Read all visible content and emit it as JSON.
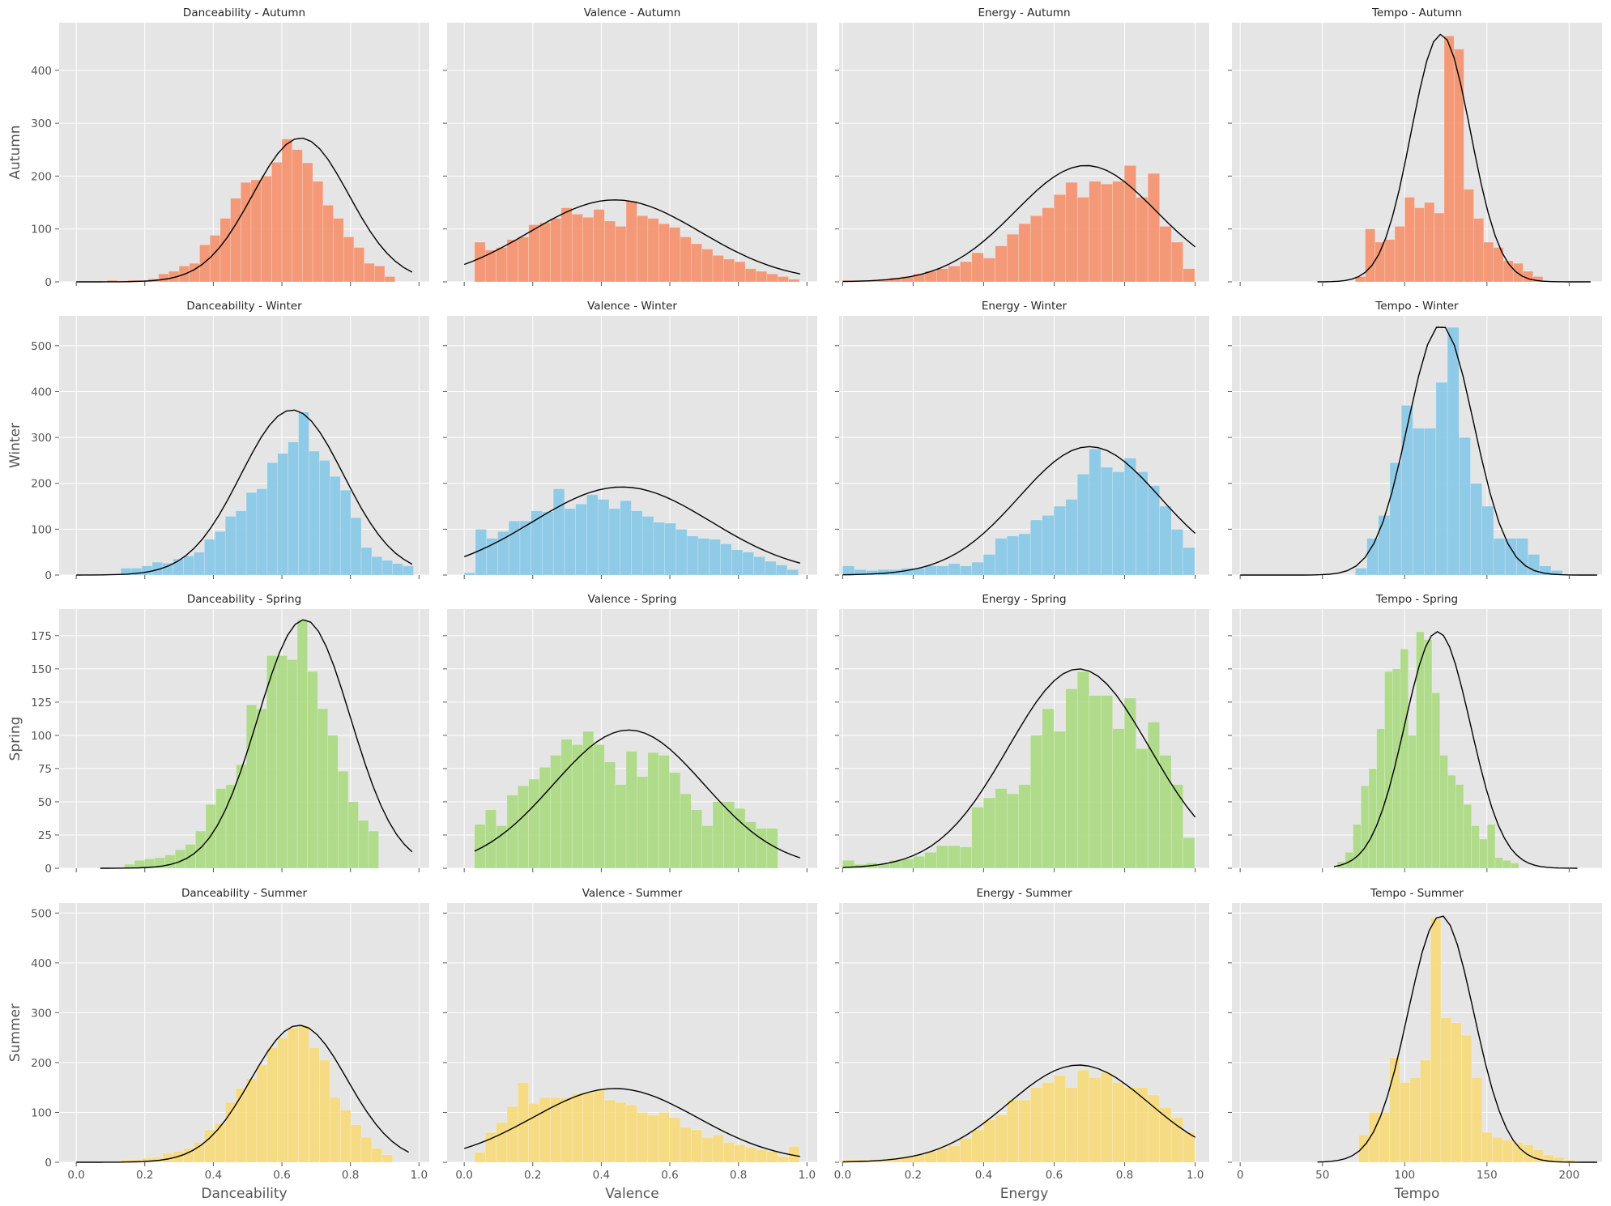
{
  "figure": {
    "colors": {
      "Autumn": "#f4906a",
      "Winter": "#85c6e6",
      "Spring": "#a9d97f",
      "Summer": "#f7d97a",
      "panel_bg": "#e5e5e5",
      "grid": "#ffffff",
      "curve": "#000000"
    }
  },
  "chart_data": {
    "type": "histogram-grid",
    "grid": true,
    "rows": [
      "Autumn",
      "Winter",
      "Spring",
      "Summer"
    ],
    "columns": [
      "Danceability",
      "Valence",
      "Energy",
      "Tempo"
    ],
    "xlabels": [
      "Danceability",
      "Valence",
      "Energy",
      "Tempo"
    ],
    "ylabels": [
      "Autumn",
      "Winter",
      "Spring",
      "Summer"
    ],
    "col_xlim": [
      [
        -0.05,
        1.03
      ],
      [
        -0.05,
        1.03
      ],
      [
        -0.01,
        1.04
      ],
      [
        -5,
        220
      ]
    ],
    "col_xticks": [
      [
        0.0,
        0.2,
        0.4,
        0.6,
        0.8,
        1.0
      ],
      [
        0.0,
        0.2,
        0.4,
        0.6,
        0.8,
        1.0
      ],
      [
        0.0,
        0.2,
        0.4,
        0.6,
        0.8,
        1.0
      ],
      [
        0,
        50,
        100,
        150,
        200
      ]
    ],
    "col_xtick_labels": [
      [
        "0.0",
        "0.2",
        "0.4",
        "0.6",
        "0.8",
        "1.0"
      ],
      [
        "0.0",
        "0.2",
        "0.4",
        "0.6",
        "0.8",
        "1.0"
      ],
      [
        "0.0",
        "0.2",
        "0.4",
        "0.6",
        "0.8",
        "1.0"
      ],
      [
        "0",
        "50",
        "100",
        "150",
        "200"
      ]
    ],
    "row_ylim": [
      [
        0,
        490
      ],
      [
        0,
        565
      ],
      [
        0,
        195
      ],
      [
        0,
        520
      ]
    ],
    "row_yticks": [
      [
        0,
        100,
        200,
        300,
        400
      ],
      [
        0,
        100,
        200,
        300,
        400,
        500
      ],
      [
        0,
        25,
        50,
        75,
        100,
        125,
        150,
        175
      ],
      [
        0,
        100,
        200,
        300,
        400,
        500
      ]
    ],
    "row_ytick_labels": [
      [
        "0",
        "100",
        "200",
        "300",
        "400"
      ],
      [
        "0",
        "100",
        "200",
        "300",
        "400",
        "500"
      ],
      [
        "0",
        "25",
        "50",
        "75",
        "100",
        "125",
        "150",
        "175"
      ],
      [
        "0",
        "100",
        "200",
        "300",
        "400",
        "500"
      ]
    ],
    "panels": [
      {
        "title": "Danceability - Autumn",
        "row": 0,
        "col": 0,
        "bin_start": 0.09,
        "bin_width": 0.03,
        "counts": [
          3,
          2,
          3,
          3,
          6,
          15,
          20,
          30,
          35,
          70,
          88,
          120,
          158,
          188,
          193,
          200,
          226,
          270,
          250,
          225,
          190,
          145,
          120,
          85,
          65,
          35,
          30,
          10
        ],
        "curve": {
          "mean": 0.655,
          "std": 0.14,
          "peak": 272,
          "x_range": [
            0.0,
            0.98
          ]
        }
      },
      {
        "title": "Valence - Autumn",
        "row": 0,
        "col": 1,
        "bin_start": 0.03,
        "bin_width": 0.0316,
        "counts": [
          75,
          60,
          65,
          80,
          85,
          108,
          112,
          120,
          140,
          128,
          122,
          137,
          115,
          105,
          153,
          125,
          120,
          110,
          103,
          85,
          72,
          62,
          50,
          43,
          38,
          25,
          20,
          15,
          10,
          5
        ],
        "curve": {
          "mean": 0.44,
          "std": 0.25,
          "peak": 155,
          "x_range": [
            0.0,
            0.98
          ]
        }
      },
      {
        "title": "Energy - Autumn",
        "row": 0,
        "col": 2,
        "bin_start": 0.0,
        "bin_width": 0.0333,
        "counts": [
          3,
          3,
          3,
          5,
          8,
          10,
          15,
          20,
          25,
          30,
          38,
          55,
          45,
          68,
          90,
          110,
          125,
          140,
          165,
          188,
          160,
          190,
          185,
          190,
          220,
          160,
          205,
          105,
          75,
          25
        ],
        "curve": {
          "mean": 0.69,
          "std": 0.2,
          "peak": 220,
          "x_range": [
            0.0,
            1.0
          ]
        }
      },
      {
        "title": "Tempo - Autumn",
        "row": 0,
        "col": 3,
        "bin_start": 70,
        "bin_width": 6,
        "counts": [
          10,
          100,
          75,
          80,
          105,
          160,
          140,
          150,
          130,
          465,
          440,
          175,
          120,
          75,
          65,
          40,
          35,
          20,
          10
        ],
        "curve": {
          "mean": 122,
          "std": 18,
          "peak": 468,
          "x_range": [
            47,
            213
          ]
        }
      },
      {
        "title": "Danceability - Winter",
        "row": 1,
        "col": 0,
        "bin_start": 0.13,
        "bin_width": 0.0305,
        "counts": [
          15,
          15,
          20,
          28,
          26,
          35,
          42,
          50,
          78,
          95,
          128,
          140,
          180,
          188,
          245,
          265,
          290,
          355,
          270,
          250,
          215,
          185,
          125,
          60,
          40,
          32,
          25,
          20
        ],
        "curve": {
          "mean": 0.63,
          "std": 0.15,
          "peak": 360,
          "x_range": [
            0.0,
            0.98
          ]
        }
      },
      {
        "title": "Valence - Winter",
        "row": 1,
        "col": 1,
        "bin_start": 0.0,
        "bin_width": 0.0325,
        "counts": [
          5,
          100,
          80,
          95,
          118,
          118,
          140,
          138,
          188,
          145,
          155,
          175,
          165,
          145,
          162,
          140,
          128,
          115,
          113,
          100,
          85,
          80,
          78,
          68,
          55,
          50,
          40,
          30,
          22,
          12
        ],
        "curve": {
          "mean": 0.46,
          "std": 0.26,
          "peak": 192,
          "x_range": [
            0.0,
            0.98
          ]
        }
      },
      {
        "title": "Energy - Winter",
        "row": 1,
        "col": 2,
        "bin_start": 0.0,
        "bin_width": 0.0333,
        "counts": [
          20,
          12,
          10,
          12,
          12,
          15,
          15,
          20,
          20,
          25,
          20,
          28,
          45,
          80,
          85,
          90,
          120,
          130,
          150,
          165,
          220,
          275,
          235,
          225,
          255,
          225,
          195,
          150,
          100,
          60
        ],
        "curve": {
          "mean": 0.7,
          "std": 0.2,
          "peak": 280,
          "x_range": [
            0.0,
            1.0
          ]
        }
      },
      {
        "title": "Tempo - Winter",
        "row": 1,
        "col": 3,
        "bin_start": 70,
        "bin_width": 7,
        "counts": [
          15,
          80,
          130,
          245,
          370,
          320,
          320,
          420,
          540,
          300,
          200,
          150,
          80,
          80,
          80,
          45,
          20,
          10
        ],
        "curve": {
          "mean": 122,
          "std": 20,
          "peak": 545,
          "x_range": [
            0,
            217
          ]
        }
      },
      {
        "title": "Danceability - Spring",
        "row": 2,
        "col": 0,
        "bin_start": 0.14,
        "bin_width": 0.0297,
        "counts": [
          3,
          6,
          7,
          8,
          10,
          14,
          18,
          28,
          48,
          60,
          63,
          78,
          123,
          120,
          160,
          160,
          157,
          187,
          148,
          120,
          100,
          73,
          50,
          36,
          28
        ],
        "curve": {
          "mean": 0.665,
          "std": 0.135,
          "peak": 187,
          "x_range": [
            0.07,
            0.98
          ]
        }
      },
      {
        "title": "Valence - Spring",
        "row": 2,
        "col": 1,
        "bin_start": 0.03,
        "bin_width": 0.0316,
        "counts": [
          33,
          44,
          32,
          55,
          62,
          67,
          76,
          85,
          97,
          93,
          103,
          93,
          80,
          63,
          88,
          69,
          87,
          85,
          72,
          56,
          44,
          32,
          50,
          50,
          45,
          35,
          30,
          30
        ],
        "curve": {
          "mean": 0.48,
          "std": 0.22,
          "peak": 104,
          "x_range": [
            0.03,
            0.98
          ]
        }
      },
      {
        "title": "Energy - Spring",
        "row": 2,
        "col": 2,
        "bin_start": 0.0,
        "bin_width": 0.0333,
        "counts": [
          6,
          3,
          4,
          3,
          6,
          7,
          9,
          12,
          17,
          17,
          16,
          46,
          53,
          60,
          56,
          63,
          100,
          120,
          103,
          135,
          148,
          130,
          130,
          105,
          128,
          90,
          110,
          85,
          63,
          23
        ],
        "curve": {
          "mean": 0.67,
          "std": 0.2,
          "peak": 150,
          "x_range": [
            0.0,
            1.0
          ]
        }
      },
      {
        "title": "Tempo - Spring",
        "row": 2,
        "col": 3,
        "bin_start": 59,
        "bin_width": 4.8,
        "counts": [
          5,
          12,
          33,
          62,
          75,
          105,
          148,
          150,
          165,
          100,
          178,
          172,
          132,
          85,
          70,
          63,
          48,
          32,
          22,
          33,
          8,
          6,
          4
        ],
        "curve": {
          "mean": 120,
          "std": 20,
          "peak": 178,
          "x_range": [
            57,
            205
          ]
        }
      },
      {
        "title": "Danceability - Summer",
        "row": 3,
        "col": 0,
        "bin_start": 0.13,
        "bin_width": 0.0305,
        "counts": [
          5,
          5,
          8,
          10,
          18,
          22,
          28,
          40,
          65,
          78,
          120,
          148,
          168,
          195,
          230,
          250,
          270,
          275,
          230,
          205,
          130,
          105,
          75,
          50,
          28,
          15
        ],
        "curve": {
          "mean": 0.65,
          "std": 0.14,
          "peak": 275,
          "x_range": [
            0.0,
            0.97
          ]
        }
      },
      {
        "title": "Valence - Summer",
        "row": 3,
        "col": 1,
        "bin_start": 0.03,
        "bin_width": 0.0316,
        "counts": [
          20,
          60,
          80,
          112,
          160,
          118,
          130,
          130,
          130,
          138,
          140,
          145,
          125,
          120,
          115,
          100,
          95,
          100,
          90,
          70,
          65,
          50,
          55,
          40,
          35,
          30,
          25,
          22,
          12,
          32
        ],
        "curve": {
          "mean": 0.44,
          "std": 0.24,
          "peak": 148,
          "x_range": [
            0.0,
            0.98
          ]
        }
      },
      {
        "title": "Energy - Summer",
        "row": 3,
        "col": 2,
        "bin_start": 0.0,
        "bin_width": 0.0333,
        "counts": [
          5,
          5,
          5,
          5,
          8,
          12,
          15,
          22,
          28,
          33,
          48,
          65,
          85,
          95,
          125,
          125,
          150,
          160,
          175,
          150,
          185,
          170,
          180,
          160,
          150,
          150,
          135,
          110,
          90,
          60
        ],
        "curve": {
          "mean": 0.67,
          "std": 0.2,
          "peak": 195,
          "x_range": [
            0.0,
            1.0
          ]
        }
      },
      {
        "title": "Tempo - Summer",
        "row": 3,
        "col": 3,
        "bin_start": 72,
        "bin_width": 6.25,
        "counts": [
          55,
          100,
          100,
          210,
          160,
          170,
          205,
          490,
          290,
          280,
          255,
          170,
          60,
          50,
          45,
          40,
          35,
          25,
          15,
          10,
          5
        ],
        "curve": {
          "mean": 122,
          "std": 20,
          "peak": 495,
          "x_range": [
            47,
            217
          ]
        }
      }
    ]
  }
}
